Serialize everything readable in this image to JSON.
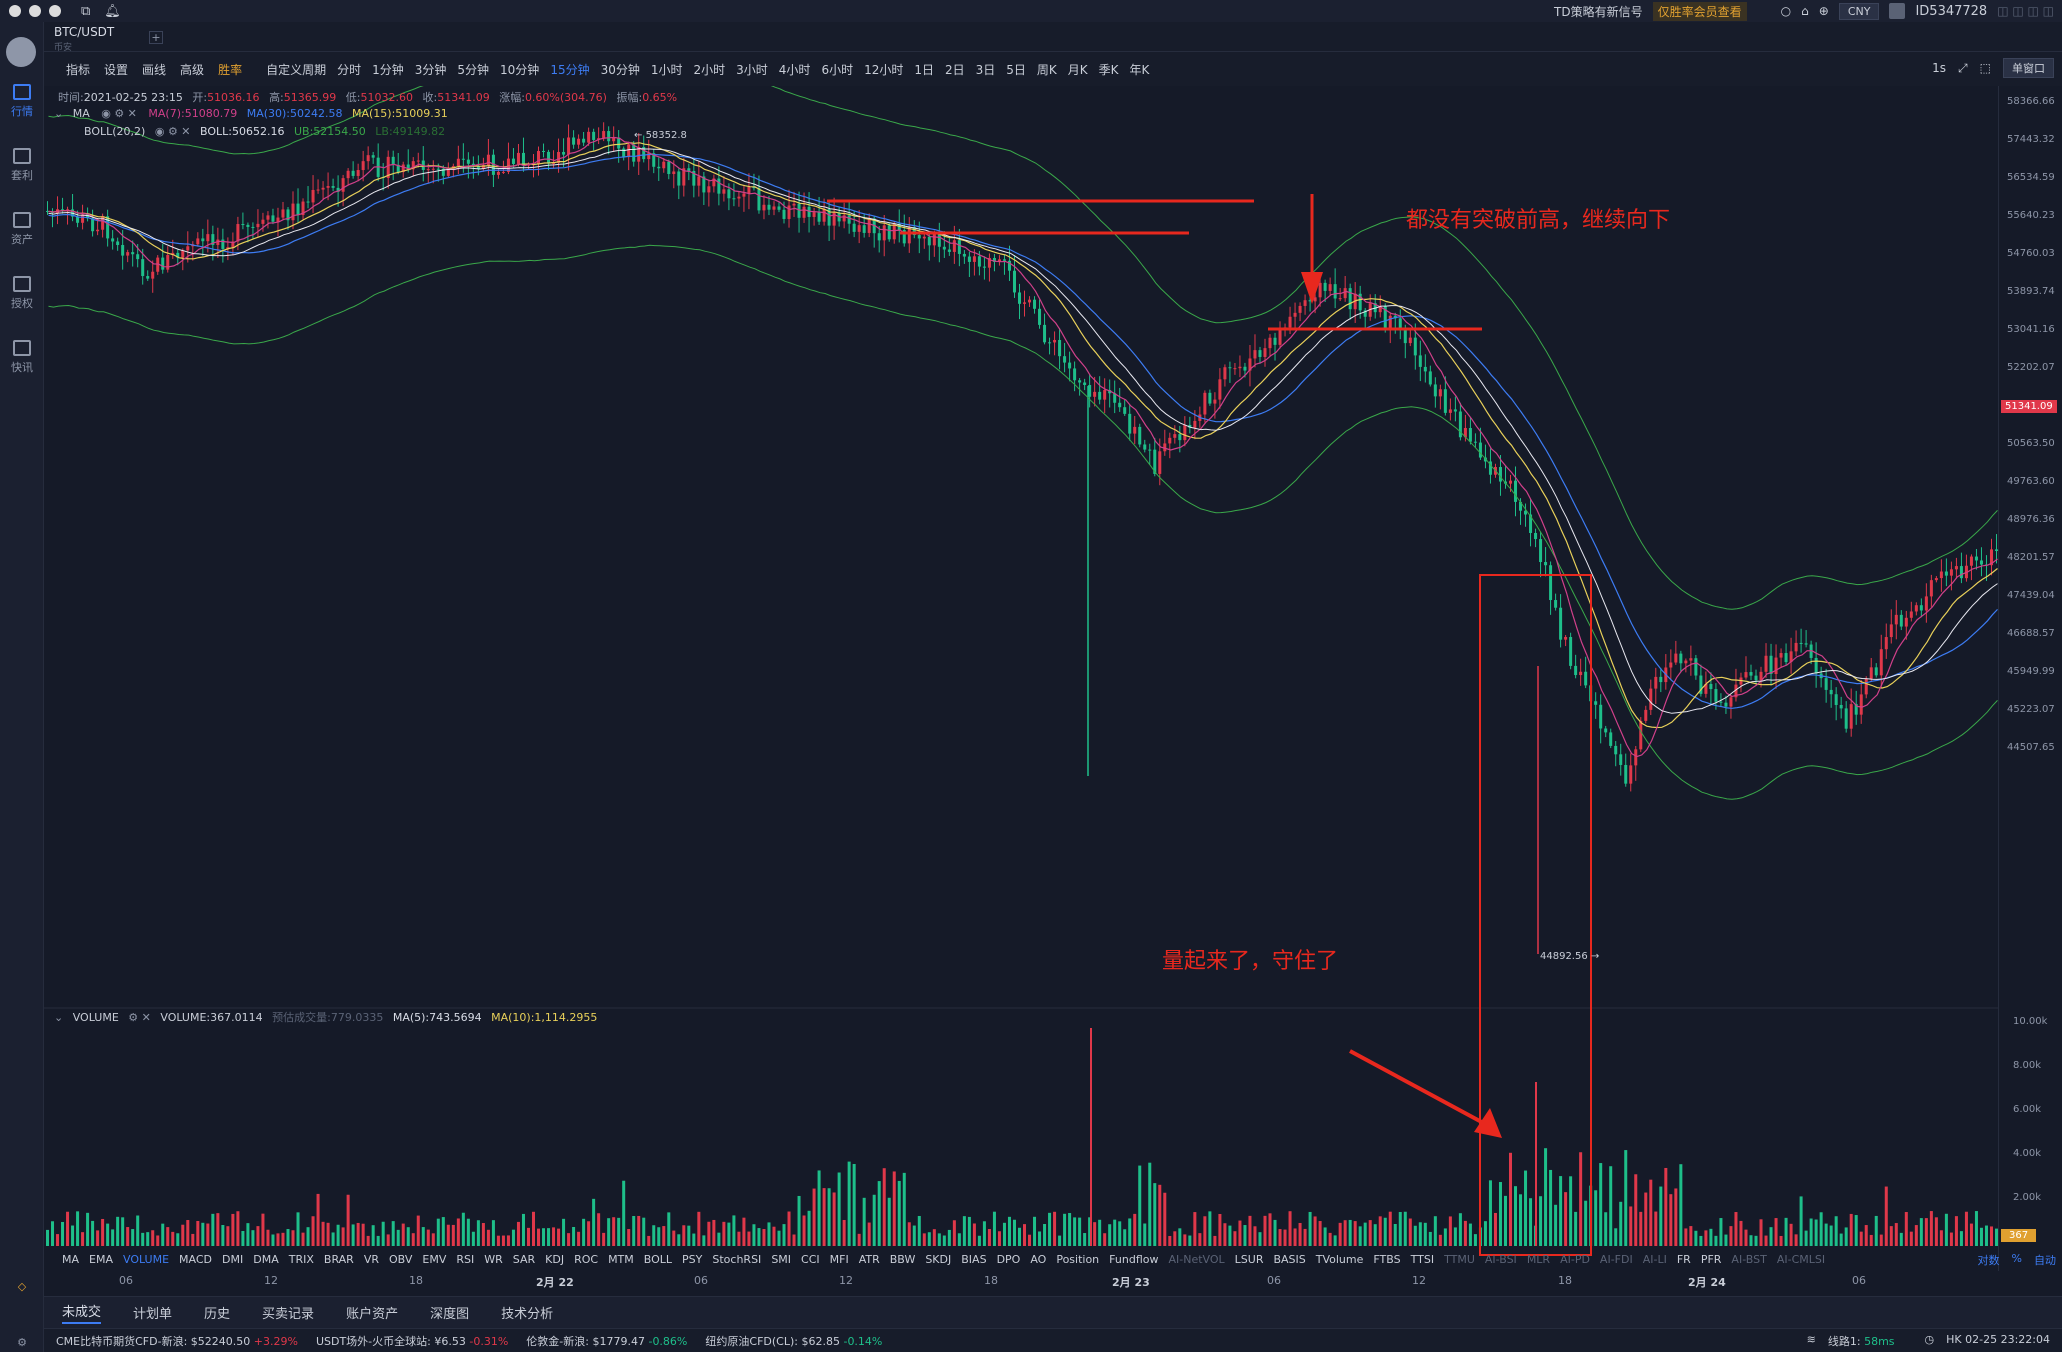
{
  "titlebar": {
    "notice": "TD策略有新信号",
    "notice_badge": "仅胜率会员查看",
    "currency": "CNY",
    "user_id": "ID5347728"
  },
  "sidebar": {
    "items": [
      {
        "label": "行情",
        "active": true
      },
      {
        "label": "套利",
        "active": false
      },
      {
        "label": "资产",
        "active": false
      },
      {
        "label": "授权",
        "active": false
      },
      {
        "label": "快讯",
        "active": false
      }
    ]
  },
  "pair": {
    "name": "BTC/USDT",
    "exchange": "币安"
  },
  "toolbar": {
    "tools": [
      "指标",
      "设置",
      "画线",
      "高级",
      "胜率"
    ],
    "custom_period": "自定义周期",
    "periods": [
      "分时",
      "1分钟",
      "3分钟",
      "5分钟",
      "10分钟",
      "15分钟",
      "30分钟",
      "1小时",
      "2小时",
      "3小时",
      "4小时",
      "6小时",
      "12小时",
      "1日",
      "2日",
      "3日",
      "5日",
      "周K",
      "月K",
      "季K",
      "年K"
    ],
    "active_period": "15分钟",
    "interval_label": "1s",
    "window_mode": "单窗口"
  },
  "candle_info": {
    "time_label": "时间:",
    "time": "2021-02-25 23:15",
    "open_label": "开:",
    "open": "51036.16",
    "high_label": "高:",
    "high": "51365.99",
    "low_label": "低:",
    "low": "51032.60",
    "close_label": "收:",
    "close": "51341.09",
    "change_label": "涨幅:",
    "change": "0.60%(304.76)",
    "amplitude_label": "振幅:",
    "amplitude": "0.65%"
  },
  "ma_legend": {
    "name": "MA",
    "ma7": "MA(7):51080.79",
    "ma30": "MA(30):50242.58",
    "ma15": "MA(15):51009.31"
  },
  "boll_legend": {
    "name": "BOLL(20,2)",
    "boll": "BOLL:50652.16",
    "ub": "UB:52154.50",
    "lb": "LB:49149.82"
  },
  "volume_legend": {
    "name": "VOLUME",
    "volume": "VOLUME:367.0114",
    "est": "预估成交量:779.0335",
    "ma5": "MA(5):743.5694",
    "ma10": "MA(10):1,114.2955"
  },
  "annotations": {
    "top_text": "都没有突破前高，继续向下",
    "bottom_text": "量起来了，守住了",
    "high_label": "58352.8",
    "low_label": "44892.56"
  },
  "price_axis": [
    "58366.66",
    "57443.32",
    "56534.59",
    "55640.23",
    "54760.03",
    "53893.74",
    "53041.16",
    "52202.07",
    "51341.09",
    "50563.50",
    "49763.60",
    "48976.36",
    "48201.57",
    "47439.04",
    "46688.57",
    "45949.99",
    "45223.07",
    "44507.65"
  ],
  "current_price": "51341.09",
  "volume_axis": [
    "10.00k",
    "8.00k",
    "6.00k",
    "4.00k",
    "2.00k"
  ],
  "current_volume": "367",
  "indicators": [
    "MA",
    "EMA",
    "VOLUME",
    "MACD",
    "DMI",
    "DMA",
    "TRIX",
    "BRAR",
    "VR",
    "OBV",
    "EMV",
    "RSI",
    "WR",
    "SAR",
    "KDJ",
    "ROC",
    "MTM",
    "BOLL",
    "PSY",
    "StochRSI",
    "SMI",
    "CCI",
    "MFI",
    "ATR",
    "BBW",
    "SKDJ",
    "BIAS",
    "DPO",
    "AO",
    "Position",
    "Fundflow",
    "AI-NetVOL",
    "LSUR",
    "BASIS",
    "TVolume",
    "FTBS",
    "TTSI",
    "TTMU",
    "AI-BSI",
    "MLR",
    "AI-PD",
    "AI-FDI",
    "AI-LI",
    "FR",
    "PFR",
    "AI-BST",
    "AI-CMLSI"
  ],
  "active_indicator": "VOLUME",
  "axis_options": [
    "对数",
    "%",
    "自动"
  ],
  "time_axis": [
    {
      "label": "06",
      "bold": false
    },
    {
      "label": "12",
      "bold": false
    },
    {
      "label": "18",
      "bold": false
    },
    {
      "label": "2月 22",
      "bold": true
    },
    {
      "label": "06",
      "bold": false
    },
    {
      "label": "12",
      "bold": false
    },
    {
      "label": "18",
      "bold": false
    },
    {
      "label": "2月 23",
      "bold": true
    },
    {
      "label": "06",
      "bold": false
    },
    {
      "label": "12",
      "bold": false
    },
    {
      "label": "18",
      "bold": false
    },
    {
      "label": "2月 24",
      "bold": true
    },
    {
      "label": "06",
      "bold": false
    }
  ],
  "bottom_tabs": [
    "未成交",
    "计划单",
    "历史",
    "买卖记录",
    "账户资产",
    "深度图",
    "技术分析"
  ],
  "status": {
    "t1_name": "CME比特币期货CFD-新浪:",
    "t1_price": "$52240.50",
    "t1_chg": "+3.29%",
    "t2_name": "USDT场外-火币全球站:",
    "t2_price": "¥6.53",
    "t2_chg": "-0.31%",
    "t3_name": "伦敦金-新浪:",
    "t3_price": "$1779.47",
    "t3_chg": "-0.86%",
    "t4_name": "纽约原油CFD(CL):",
    "t4_price": "$62.85",
    "t4_chg": "-0.14%",
    "line": "线路1: 58ms",
    "clock": "HK 02-25 23:22:04"
  },
  "colors": {
    "up": "#e0384a",
    "down": "#1ebf8a",
    "accent": "#3d7cf3",
    "annotation": "#e8281e",
    "ma7": "#d0408a",
    "ma30": "#3d7cf3",
    "ma15": "#e8d05a"
  }
}
